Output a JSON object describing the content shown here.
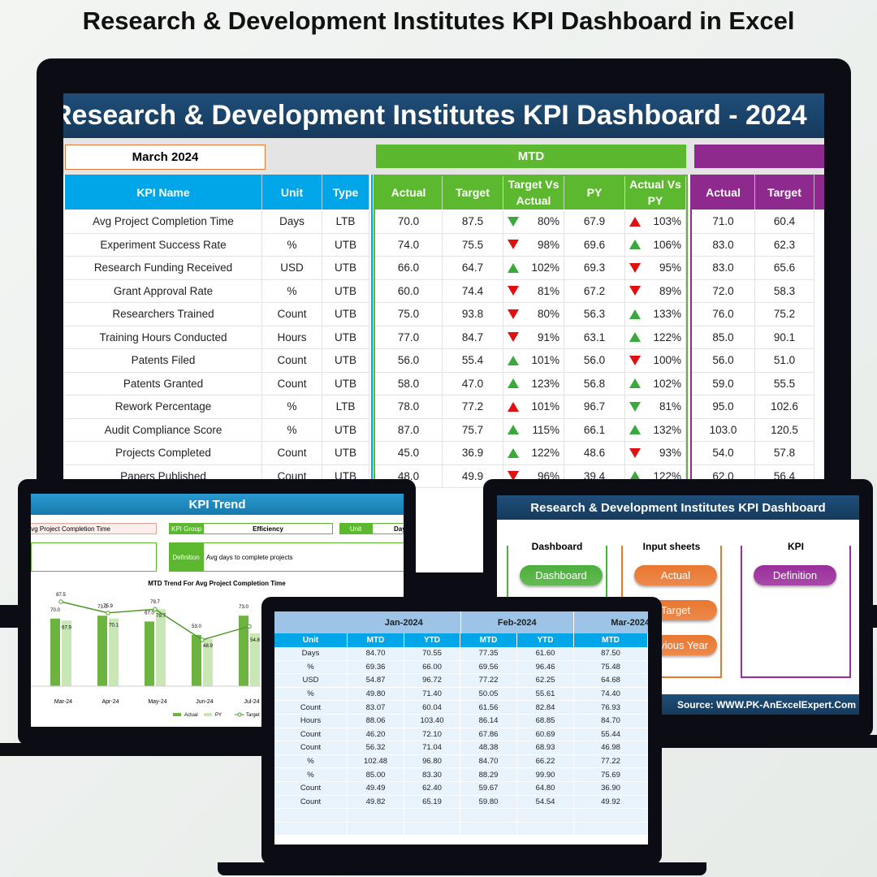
{
  "title": "Research & Development Institutes KPI Dashboard in Excel",
  "main": {
    "banner": "Research & Development Institutes KPI Dashboard - 2024",
    "month": "March 2024",
    "mtd_label": "MTD",
    "columns": [
      "KPI Name",
      "Unit",
      "Type",
      "Actual",
      "Target",
      "Target Vs Actual",
      "PY",
      "Actual Vs PY",
      "Actual",
      "Target"
    ],
    "rows": [
      [
        "Avg Project Completion Time",
        "Days",
        "LTB",
        "70.0",
        "87.5",
        "80%",
        "67.9",
        "103%",
        "71.0",
        "60.4"
      ],
      [
        "Experiment Success Rate",
        "%",
        "UTB",
        "74.0",
        "75.5",
        "98%",
        "69.6",
        "106%",
        "83.0",
        "62.3"
      ],
      [
        "Research Funding Received",
        "USD",
        "UTB",
        "66.0",
        "64.7",
        "102%",
        "69.3",
        "95%",
        "83.0",
        "65.6"
      ],
      [
        "Grant Approval Rate",
        "%",
        "UTB",
        "60.0",
        "74.4",
        "81%",
        "67.2",
        "89%",
        "72.0",
        "58.3"
      ],
      [
        "Researchers Trained",
        "Count",
        "UTB",
        "75.0",
        "93.8",
        "80%",
        "56.3",
        "133%",
        "76.0",
        "75.2"
      ],
      [
        "Training Hours Conducted",
        "Hours",
        "UTB",
        "77.0",
        "84.7",
        "91%",
        "63.1",
        "122%",
        "85.0",
        "90.1"
      ],
      [
        "Patents Filed",
        "Count",
        "UTB",
        "56.0",
        "55.4",
        "101%",
        "56.0",
        "100%",
        "56.0",
        "51.0"
      ],
      [
        "Patents Granted",
        "Count",
        "UTB",
        "58.0",
        "47.0",
        "123%",
        "56.8",
        "102%",
        "59.0",
        "55.5"
      ],
      [
        "Rework Percentage",
        "%",
        "LTB",
        "78.0",
        "77.2",
        "101%",
        "96.7",
        "81%",
        "95.0",
        "102.6"
      ],
      [
        "Audit Compliance Score",
        "%",
        "UTB",
        "87.0",
        "75.7",
        "115%",
        "66.1",
        "132%",
        "103.0",
        "120.5"
      ],
      [
        "Projects Completed",
        "Count",
        "UTB",
        "45.0",
        "36.9",
        "122%",
        "48.6",
        "93%",
        "54.0",
        "57.8"
      ],
      [
        "Papers Published",
        "Count",
        "UTB",
        "48.0",
        "49.9",
        "96%",
        "39.4",
        "122%",
        "62.0",
        "56.4"
      ]
    ]
  },
  "trend": {
    "title": "KPI Trend",
    "kpi_name": "Avg Project Completion Time",
    "kpi_group_label": "KPI Group",
    "kpi_group": "Efficiency",
    "unit_label": "Unit",
    "unit": "Days",
    "definition_label": "Definition",
    "definition": "Avg days to complete projects",
    "chart": {
      "type": "bar",
      "title": "MTD Trend For Avg Project Completion Time",
      "categories": [
        "Mar-24",
        "Apr-24",
        "May-24",
        "Jun-24",
        "Jul-24"
      ],
      "ylim": [
        0,
        90
      ],
      "series": [
        {
          "name": "Actual",
          "color": "#6cb33f",
          "values": [
            70,
            73,
            67,
            53,
            73
          ],
          "value_labels": [
            "70.0",
            "73.0",
            "67.0",
            "53.0",
            "73.0"
          ]
        },
        {
          "name": "PY",
          "color": "#c9e6b5",
          "values": [
            67.9,
            70.1,
            79.7,
            48.9,
            54.8
          ],
          "value_labels": [
            "67.9",
            "70.1",
            "79.7",
            "48.9",
            "54.8"
          ]
        },
        {
          "name": "Target",
          "color": "#4f9a2b",
          "values": [
            87.5,
            75.9,
            79.7,
            48,
            62
          ],
          "value_labels": [
            "87.5",
            "75.9",
            "79.7",
            null,
            null
          ]
        }
      ]
    }
  },
  "input": {
    "months": [
      "Jan-2024",
      "Feb-2024",
      "Mar-2024"
    ],
    "columns": [
      "Unit",
      "MTD",
      "YTD",
      "MTD",
      "YTD",
      "MTD"
    ],
    "rows": [
      [
        "Days",
        "84.70",
        "70.55",
        "77.35",
        "61.60",
        "87.50"
      ],
      [
        "%",
        "69.36",
        "66.00",
        "69.56",
        "96.46",
        "75.48"
      ],
      [
        "USD",
        "54.87",
        "96.72",
        "77.22",
        "62.25",
        "64.68"
      ],
      [
        "%",
        "49.80",
        "71.40",
        "50.05",
        "55.61",
        "74.40"
      ],
      [
        "Count",
        "83.07",
        "60.04",
        "61.56",
        "82.84",
        "76.93"
      ],
      [
        "Hours",
        "88.06",
        "103.40",
        "86.14",
        "68.85",
        "84.70"
      ],
      [
        "Count",
        "46.20",
        "72.10",
        "67.86",
        "60.69",
        "55.44"
      ],
      [
        "Count",
        "56.32",
        "71.04",
        "48.38",
        "68.93",
        "46.98"
      ],
      [
        "%",
        "102.48",
        "96.80",
        "84.70",
        "66.22",
        "77.22"
      ],
      [
        "%",
        "85.00",
        "83.30",
        "88.29",
        "99.90",
        "75.69"
      ],
      [
        "Count",
        "49.49",
        "62.40",
        "59.67",
        "64.80",
        "36.90"
      ],
      [
        "Count",
        "49.82",
        "65.19",
        "59.80",
        "54.54",
        "49.92"
      ]
    ]
  },
  "home": {
    "title": "Research & Development Institutes KPI Dashboard",
    "sections": [
      {
        "title": "Dashboard",
        "buttons": [
          "Dashboard"
        ]
      },
      {
        "title": "Input sheets",
        "buttons": [
          "Actual",
          "Target",
          "Previous Year"
        ]
      },
      {
        "title": "KPI",
        "buttons": [
          "Definition"
        ]
      }
    ],
    "source": "Source: WWW.PK-AnExcelExpert.Com"
  }
}
